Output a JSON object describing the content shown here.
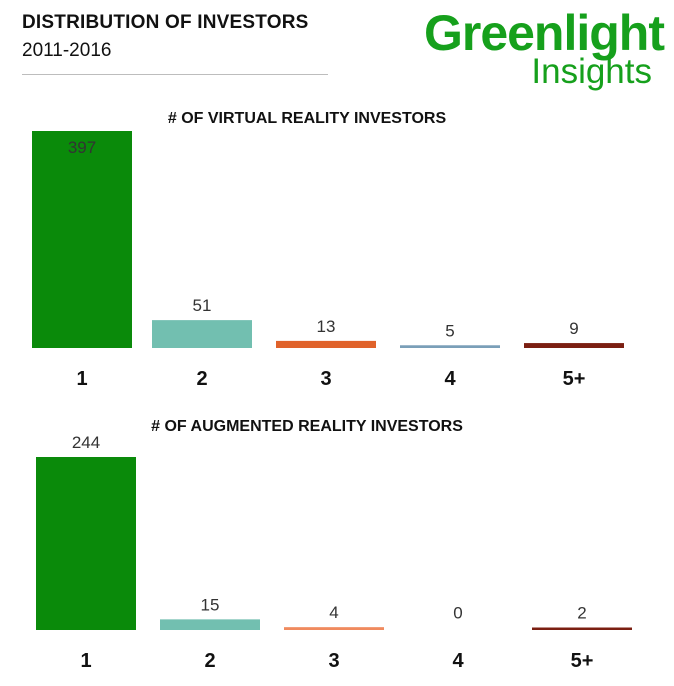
{
  "header": {
    "title": "DISTRIBUTION OF INVESTORS",
    "subtitle": "2011-2016"
  },
  "logo": {
    "line1": "Greenlight",
    "line2": "Insights",
    "color": "#16a01c"
  },
  "chart_data": [
    {
      "type": "bar",
      "title": "# OF VIRTUAL REALITY INVESTORS",
      "categories": [
        "1",
        "2",
        "3",
        "4",
        "5+"
      ],
      "values": [
        397,
        51,
        13,
        5,
        9
      ],
      "colors": [
        "#0a8a0a",
        "#72bfb0",
        "#e0622a",
        "#7a9fb8",
        "#7b1f12"
      ],
      "ylim": [
        0,
        397
      ],
      "grid": false,
      "legend": "none"
    },
    {
      "type": "bar",
      "title": "# OF AUGMENTED REALITY INVESTORS",
      "categories": [
        "1",
        "2",
        "3",
        "4",
        "5+"
      ],
      "values": [
        244,
        15,
        4,
        0,
        2
      ],
      "colors": [
        "#0a8a0a",
        "#72bfb0",
        "#f08a5e",
        "#7a9fb8",
        "#7b1f12"
      ],
      "ylim": [
        0,
        244
      ],
      "grid": false,
      "legend": "none"
    }
  ]
}
